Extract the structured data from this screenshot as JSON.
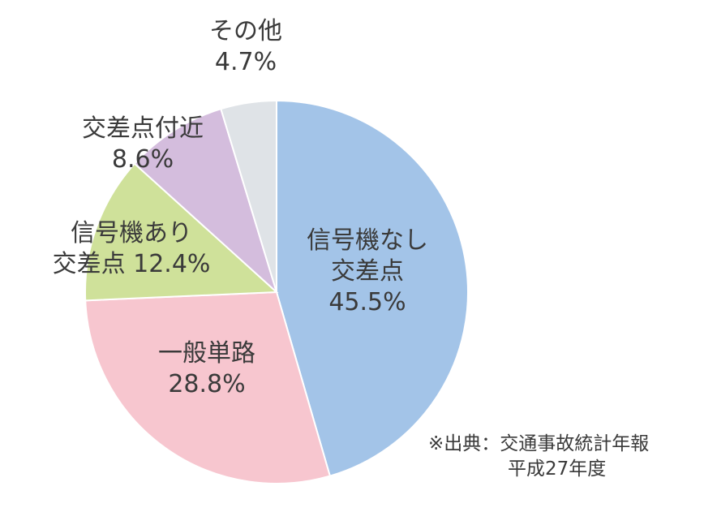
{
  "chart_data": {
    "type": "pie",
    "slices": [
      {
        "label_lines": [
          "信号機なし",
          "交差点"
        ],
        "value": 45.5,
        "value_label": "45.5%",
        "color": "#a3c4e8"
      },
      {
        "label_lines": [
          "一般単路"
        ],
        "value": 28.8,
        "value_label": "28.8%",
        "color": "#f7c6cf"
      },
      {
        "label_lines": [
          "信号機あり",
          "交差点"
        ],
        "value": 12.4,
        "value_label": "12.4%",
        "color": "#cfe19a"
      },
      {
        "label_lines": [
          "交差点付近"
        ],
        "value": 8.6,
        "value_label": "8.6%",
        "color": "#d4bddd"
      },
      {
        "label_lines": [
          "その他"
        ],
        "value": 4.7,
        "value_label": "4.7%",
        "color": "#dfe3e7"
      }
    ],
    "start": "12 o'clock",
    "direction": "clockwise"
  },
  "source_note": {
    "line1": "※出典：交通事故統計年報",
    "line2": "平成27年度"
  }
}
